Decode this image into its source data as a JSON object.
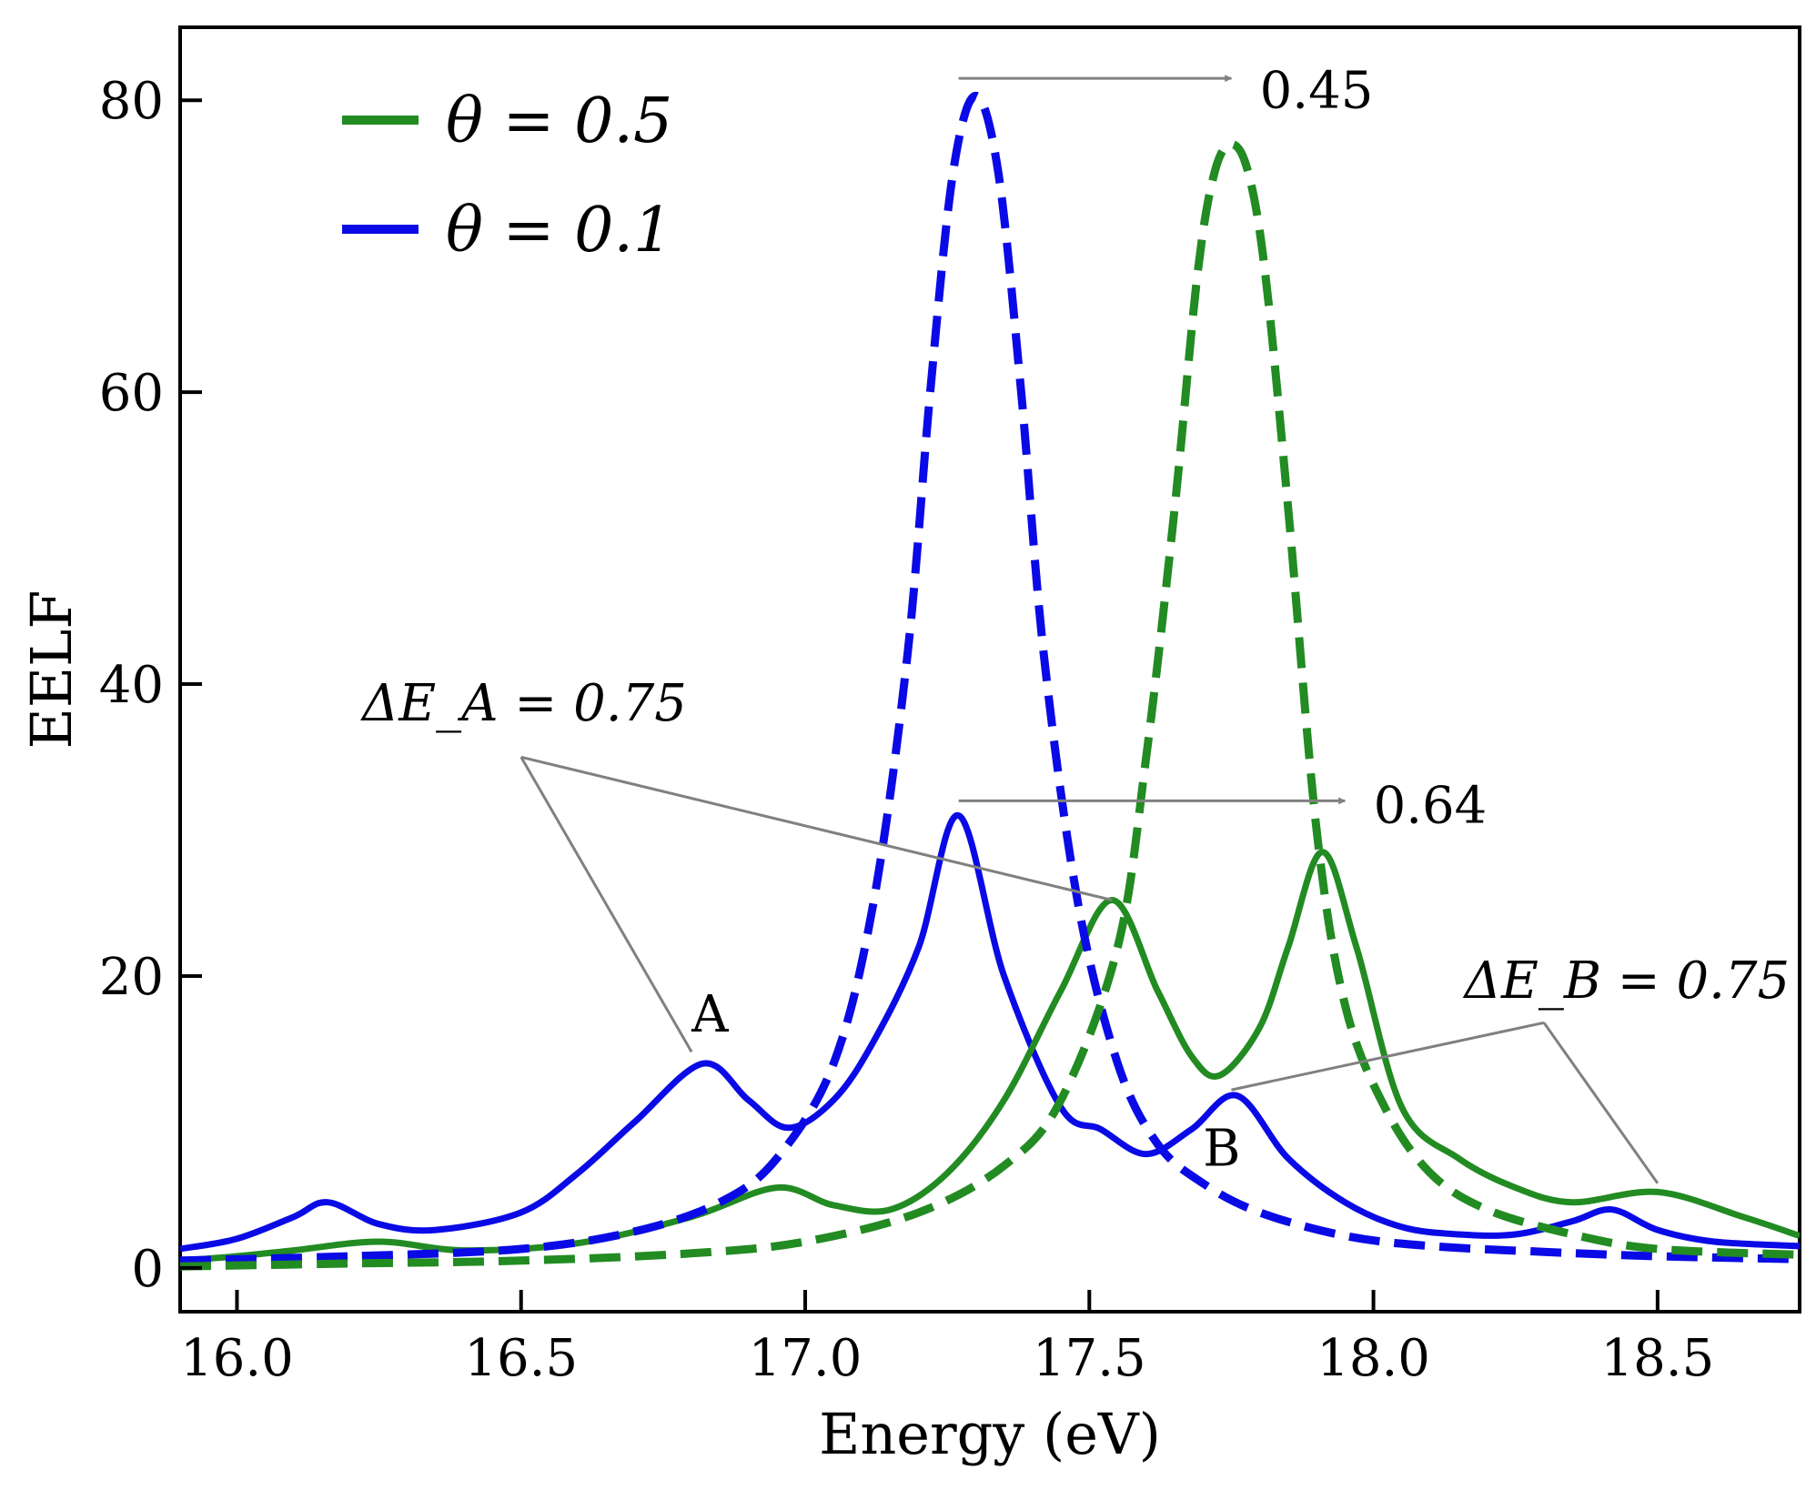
{
  "chart_data": {
    "type": "line",
    "title": "",
    "xlabel": "Energy (eV)",
    "ylabel": "EELF",
    "xlim": [
      15.9,
      18.75
    ],
    "ylim": [
      -3,
      85
    ],
    "xticks": [
      16.0,
      16.5,
      17.0,
      17.5,
      18.0,
      18.5
    ],
    "xtick_labels": [
      "16.0",
      "16.5",
      "17.0",
      "17.5",
      "18.0",
      "18.5"
    ],
    "yticks": [
      0,
      20,
      40,
      60,
      80
    ],
    "ytick_labels": [
      "0",
      "20",
      "40",
      "60",
      "80"
    ],
    "colors": {
      "green": "#228b22",
      "blue": "#0a0ae6",
      "arrow": "#808080"
    },
    "legend": {
      "position": "top-left",
      "entries": [
        {
          "label": "θ = 0.5",
          "color": "#228b22"
        },
        {
          "label": "θ = 0.1",
          "color": "#0a0ae6"
        }
      ]
    },
    "series": [
      {
        "name": "θ = 0.1 solid",
        "color": "#0a0ae6",
        "style": "solid",
        "x": [
          15.9,
          16.0,
          16.1,
          16.16,
          16.25,
          16.35,
          16.5,
          16.6,
          16.7,
          16.82,
          16.9,
          16.97,
          17.05,
          17.12,
          17.2,
          17.27,
          17.35,
          17.45,
          17.52,
          17.6,
          17.68,
          17.76,
          17.85,
          17.95,
          18.05,
          18.15,
          18.25,
          18.35,
          18.42,
          18.5,
          18.6,
          18.75
        ],
        "y": [
          1.3,
          2.0,
          3.5,
          4.5,
          3.0,
          2.6,
          3.8,
          6.5,
          10.0,
          14.0,
          11.5,
          9.6,
          11.5,
          15.5,
          22.0,
          31.0,
          20.0,
          11.0,
          9.5,
          7.8,
          9.5,
          11.8,
          7.5,
          4.5,
          2.8,
          2.3,
          2.3,
          3.2,
          4.0,
          2.6,
          1.8,
          1.5
        ]
      },
      {
        "name": "θ = 0.5 solid",
        "color": "#228b22",
        "style": "solid",
        "x": [
          15.9,
          16.0,
          16.1,
          16.25,
          16.4,
          16.6,
          16.8,
          16.95,
          17.05,
          17.15,
          17.25,
          17.35,
          17.45,
          17.54,
          17.62,
          17.68,
          17.73,
          17.8,
          17.85,
          17.91,
          17.97,
          18.05,
          18.15,
          18.25,
          18.35,
          18.5,
          18.65,
          18.75
        ],
        "y": [
          0.5,
          0.8,
          1.2,
          1.8,
          1.2,
          1.7,
          3.5,
          5.5,
          4.3,
          4.0,
          6.5,
          11.5,
          19.0,
          25.2,
          19.0,
          14.5,
          13.2,
          16.5,
          22.0,
          28.5,
          22.0,
          11.0,
          7.5,
          5.5,
          4.5,
          5.2,
          3.5,
          2.2
        ]
      },
      {
        "name": "θ = 0.1 dashed",
        "color": "#0a0ae6",
        "style": "dashed",
        "x": [
          15.9,
          16.2,
          16.5,
          16.7,
          16.85,
          16.95,
          17.05,
          17.12,
          17.18,
          17.22,
          17.26,
          17.3,
          17.34,
          17.38,
          17.42,
          17.48,
          17.55,
          17.62,
          17.7,
          17.8,
          17.95,
          18.1,
          18.3,
          18.5,
          18.75
        ],
        "y": [
          0.5,
          0.8,
          1.3,
          2.5,
          4.5,
          7.5,
          14.0,
          25.0,
          42.0,
          60.0,
          75.0,
          80.3,
          75.0,
          60.0,
          42.0,
          25.0,
          14.0,
          8.5,
          5.8,
          3.8,
          2.2,
          1.5,
          1.1,
          0.8,
          0.6
        ]
      },
      {
        "name": "θ = 0.5 dashed",
        "color": "#228b22",
        "style": "dashed",
        "x": [
          15.9,
          16.2,
          16.5,
          16.8,
          17.0,
          17.2,
          17.35,
          17.45,
          17.55,
          17.6,
          17.65,
          17.69,
          17.72,
          17.75,
          17.78,
          17.81,
          17.85,
          17.9,
          17.95,
          18.02,
          18.1,
          18.2,
          18.35,
          18.5,
          18.75
        ],
        "y": [
          0.1,
          0.3,
          0.5,
          1.0,
          1.8,
          3.8,
          7.0,
          11.5,
          22.0,
          35.0,
          52.0,
          68.0,
          75.0,
          77.0,
          75.0,
          68.0,
          52.0,
          30.0,
          18.0,
          11.0,
          6.5,
          4.0,
          2.3,
          1.3,
          0.9
        ]
      }
    ],
    "annotations": {
      "peak_shift_top": {
        "label": "0.45",
        "from_x": 17.27,
        "to_x": 17.75,
        "y": 81.5,
        "text_x": 17.8,
        "text_y": 81.0
      },
      "peak_shift_mid": {
        "label": "0.64",
        "from_x": 17.27,
        "to_x": 17.95,
        "y": 32.0,
        "text_x": 18.0,
        "text_y": 32.0
      },
      "peak_A": {
        "label": "A",
        "x": 16.82,
        "y": 16.2
      },
      "peak_B": {
        "label": "B",
        "x": 17.7,
        "y": 7.5
      },
      "delta_A": {
        "label": "ΔE_A = 0.75",
        "text_x": 16.22,
        "text_y": 37.5,
        "anchor_x": 16.5,
        "anchor_y": 35.0,
        "target1_x": 16.8,
        "target1_y": 14.8,
        "target2_x": 17.54,
        "target2_y": 25.2
      },
      "delta_B": {
        "label": "ΔE_B = 0.75",
        "text_x": 18.16,
        "text_y": 18.5,
        "anchor_x": 18.3,
        "anchor_y": 16.8,
        "target1_x": 17.75,
        "target1_y": 12.2,
        "target2_x": 18.5,
        "target2_y": 5.8
      }
    }
  }
}
